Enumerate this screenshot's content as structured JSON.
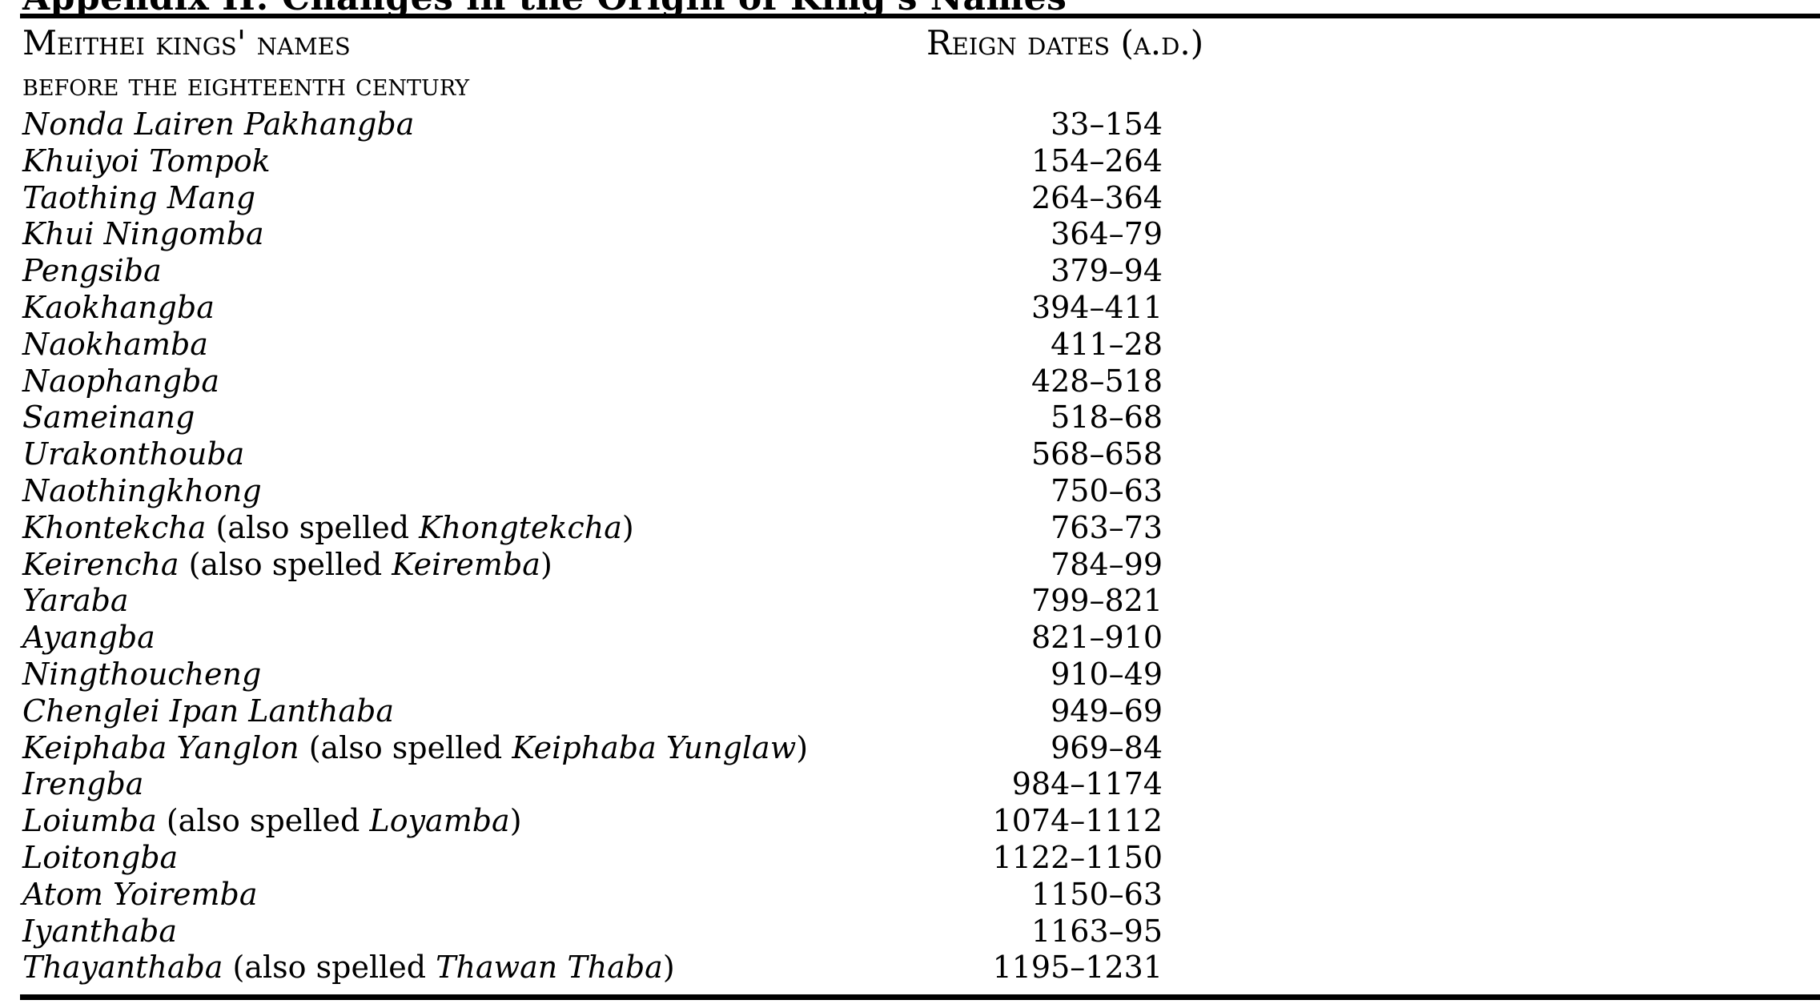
{
  "page_title": "Appendix II: Changes in the Origin of King's Names",
  "table": {
    "header": {
      "col1_line1": "Meithei kings' names",
      "col1_line2": "before the eighteenth century",
      "col2": "Reign dates (a.d.)"
    },
    "also_spelled_label": "also spelled",
    "rows": [
      {
        "name": "Nonda Lairen Pakhangba",
        "alt": null,
        "dates": "33–154"
      },
      {
        "name": "Khuiyoi Tompok",
        "alt": null,
        "dates": "154–264"
      },
      {
        "name": "Taothing Mang",
        "alt": null,
        "dates": "264–364"
      },
      {
        "name": "Khui Ningomba",
        "alt": null,
        "dates": "364–79"
      },
      {
        "name": "Pengsiba",
        "alt": null,
        "dates": "379–94"
      },
      {
        "name": "Kaokhangba",
        "alt": null,
        "dates": "394–411"
      },
      {
        "name": "Naokhamba",
        "alt": null,
        "dates": "411–28"
      },
      {
        "name": "Naophangba",
        "alt": null,
        "dates": "428–518"
      },
      {
        "name": "Sameinang",
        "alt": null,
        "dates": "518–68"
      },
      {
        "name": "Urakonthouba",
        "alt": null,
        "dates": "568–658"
      },
      {
        "name": "Naothingkhong",
        "alt": null,
        "dates": "750–63"
      },
      {
        "name": "Khontekcha",
        "alt": "Khongtekcha",
        "dates": "763–73"
      },
      {
        "name": "Keirencha",
        "alt": "Keiremba",
        "dates": "784–99"
      },
      {
        "name": "Yaraba",
        "alt": null,
        "dates": "799–821"
      },
      {
        "name": "Ayangba",
        "alt": null,
        "dates": "821–910"
      },
      {
        "name": "Ningthoucheng",
        "alt": null,
        "dates": "910–49"
      },
      {
        "name": "Chenglei Ipan Lanthaba",
        "alt": null,
        "dates": "949–69"
      },
      {
        "name": "Keiphaba Yanglon",
        "alt": "Keiphaba Yunglaw",
        "dates": "969–84"
      },
      {
        "name": "Irengba",
        "alt": null,
        "dates": "984–1174"
      },
      {
        "name": "Loiumba",
        "alt": "Loyamba",
        "dates": "1074–1112"
      },
      {
        "name": "Loitongba",
        "alt": null,
        "dates": "1122–1150"
      },
      {
        "name": "Atom Yoiremba",
        "alt": null,
        "dates": "1150–63"
      },
      {
        "name": "Iyanthaba",
        "alt": null,
        "dates": "1163–95"
      },
      {
        "name": "Thayanthaba",
        "alt": "Thawan Thaba",
        "dates": "1195–1231"
      }
    ]
  }
}
